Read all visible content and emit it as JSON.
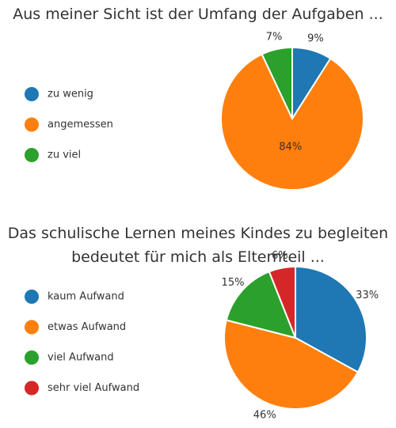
{
  "chart_data": [
    {
      "type": "pie",
      "title": "Aus meiner Sicht ist der Umfang der Aufgaben ...",
      "categories": [
        "zu wenig",
        "angemessen",
        "zu viel"
      ],
      "values": [
        9,
        84,
        7
      ],
      "value_labels": [
        "9%",
        "84%",
        "7%"
      ],
      "colors": [
        "#1f77b4",
        "#ff7f0e",
        "#2ca02c"
      ],
      "legend": "left"
    },
    {
      "type": "pie",
      "title": "Das schulische Lernen meines Kindes zu begleiten bedeutet für mich als Elternteil ...",
      "categories": [
        "kaum Aufwand",
        "etwas Aufwand",
        "viel Aufwand",
        "sehr viel Aufwand"
      ],
      "values": [
        33,
        46,
        15,
        6
      ],
      "value_labels": [
        "33%",
        "46%",
        "15%",
        "6%"
      ],
      "colors": [
        "#1f77b4",
        "#ff7f0e",
        "#2ca02c",
        "#d62728"
      ],
      "legend": "left"
    }
  ]
}
